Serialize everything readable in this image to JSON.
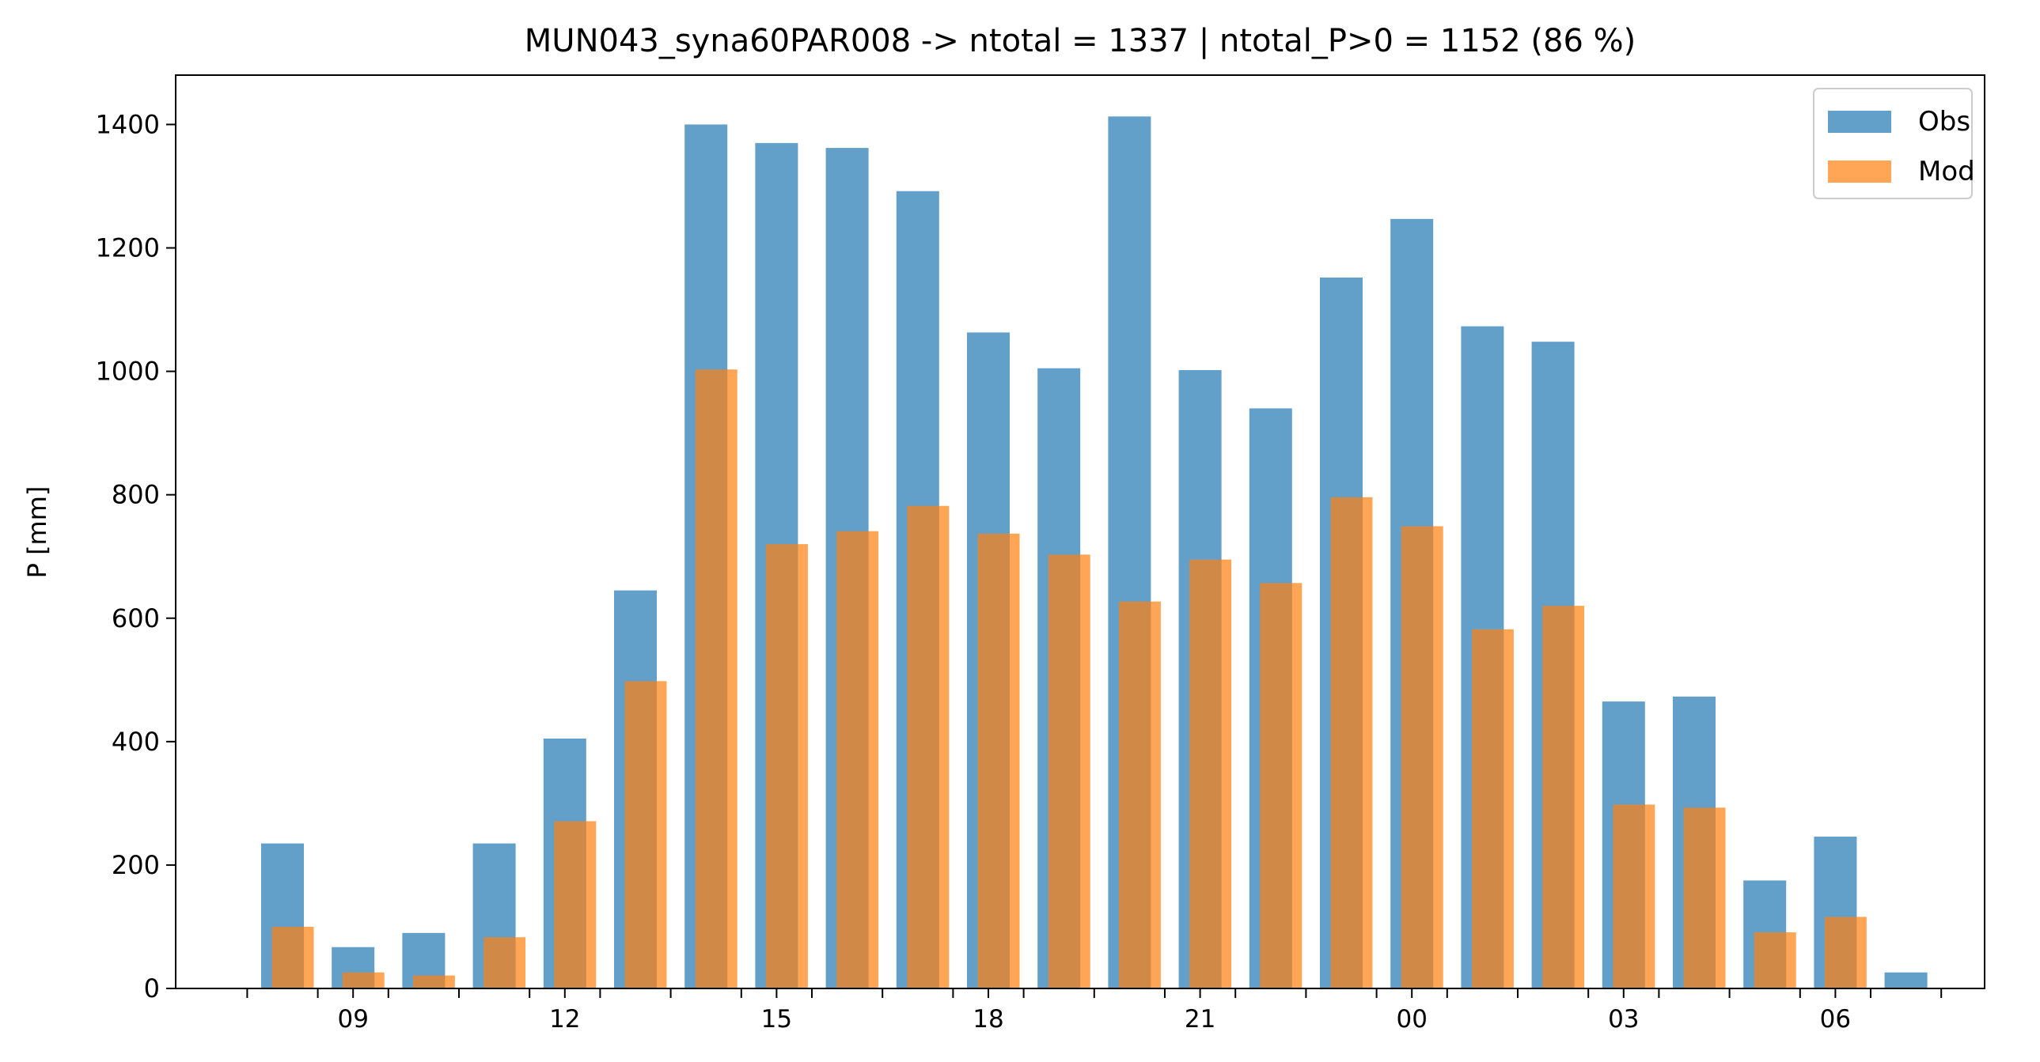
{
  "chart_data": {
    "type": "bar",
    "title": "MUN043_syna60PAR008 -> ntotal = 1337 | ntotal_P>0 = 1152 (86 %)",
    "xlabel": "",
    "ylabel": "P [mm]",
    "ylim": [
      0,
      1480
    ],
    "yticks": [
      0,
      200,
      400,
      600,
      800,
      1000,
      1200,
      1400
    ],
    "x_hours": [
      8,
      9,
      10,
      11,
      12,
      13,
      14,
      15,
      16,
      17,
      18,
      19,
      20,
      21,
      22,
      23,
      0,
      1,
      2,
      3,
      4,
      5,
      6,
      7
    ],
    "xtick_labels": [
      "09",
      "12",
      "15",
      "18",
      "21",
      "00",
      "03",
      "06"
    ],
    "legend_position": "top-right",
    "grid": false,
    "series": [
      {
        "name": "Obs",
        "color": "#1f77b4",
        "values": [
          235,
          67,
          90,
          235,
          405,
          645,
          1400,
          1370,
          1362,
          1292,
          1063,
          1005,
          1413,
          1002,
          940,
          1152,
          1247,
          1073,
          1048,
          465,
          473,
          175,
          246,
          26
        ]
      },
      {
        "name": "Mod",
        "color": "#ff7f0e",
        "values": [
          100,
          26,
          21,
          83,
          271,
          498,
          1003,
          720,
          741,
          782,
          737,
          703,
          627,
          695,
          657,
          796,
          749,
          582,
          620,
          298,
          293,
          91,
          116,
          0
        ]
      }
    ]
  }
}
